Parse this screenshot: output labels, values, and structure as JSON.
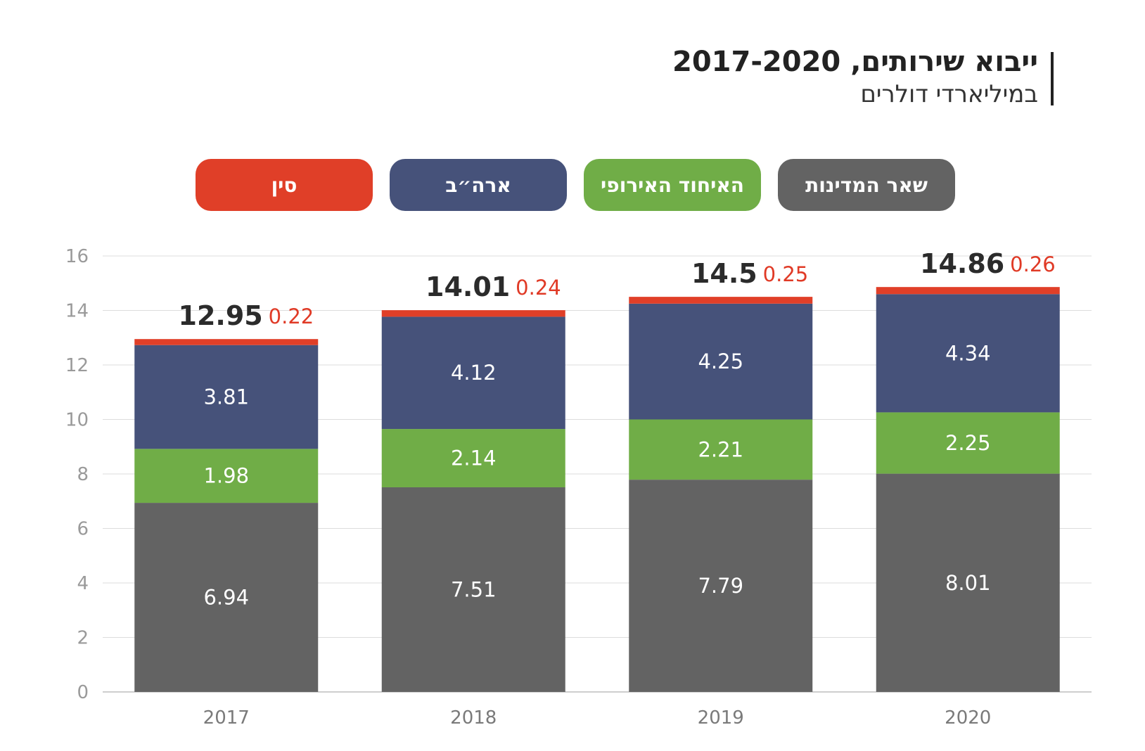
{
  "header": {
    "title": "ייבוא שירותים, 2017-2020",
    "subtitle": "במיליארדי דולרים"
  },
  "legend": [
    {
      "label": "שאר המדינות",
      "color": "#636363"
    },
    {
      "label": "האיחוד האירופי",
      "color": "#70ad47"
    },
    {
      "label": "ארה״ב",
      "color": "#46527a"
    },
    {
      "label": "סין",
      "color": "#e03f28"
    }
  ],
  "chart_data": {
    "type": "bar",
    "stacked": true,
    "categories": [
      "2017",
      "2018",
      "2019",
      "2020"
    ],
    "series": [
      {
        "name": "שאר המדינות",
        "color": "#636363",
        "values": [
          6.94,
          7.51,
          7.79,
          8.01
        ],
        "labels": [
          "6.94",
          "7.51",
          "7.79",
          "8.01"
        ]
      },
      {
        "name": "האיחוד האירופי",
        "color": "#70ad47",
        "values": [
          1.98,
          2.14,
          2.21,
          2.25
        ],
        "labels": [
          "1.98",
          "2.14",
          "2.21",
          "2.25"
        ]
      },
      {
        "name": "ארה״ב",
        "color": "#46527a",
        "values": [
          3.81,
          4.12,
          4.25,
          4.34
        ],
        "labels": [
          "3.81",
          "4.12",
          "4.25",
          "4.34"
        ]
      },
      {
        "name": "סין",
        "color": "#e03f28",
        "values": [
          0.22,
          0.24,
          0.25,
          0.26
        ],
        "labels": [
          "0.22",
          "0.24",
          "0.25",
          "0.26"
        ]
      }
    ],
    "totals": [
      "12.95",
      "14.01",
      "14.5",
      "14.86"
    ],
    "ylim": [
      0,
      16
    ],
    "yticks": [
      "0",
      "2",
      "4",
      "6",
      "8",
      "10",
      "12",
      "14",
      "16"
    ],
    "grid": true,
    "legend_position": "top"
  }
}
